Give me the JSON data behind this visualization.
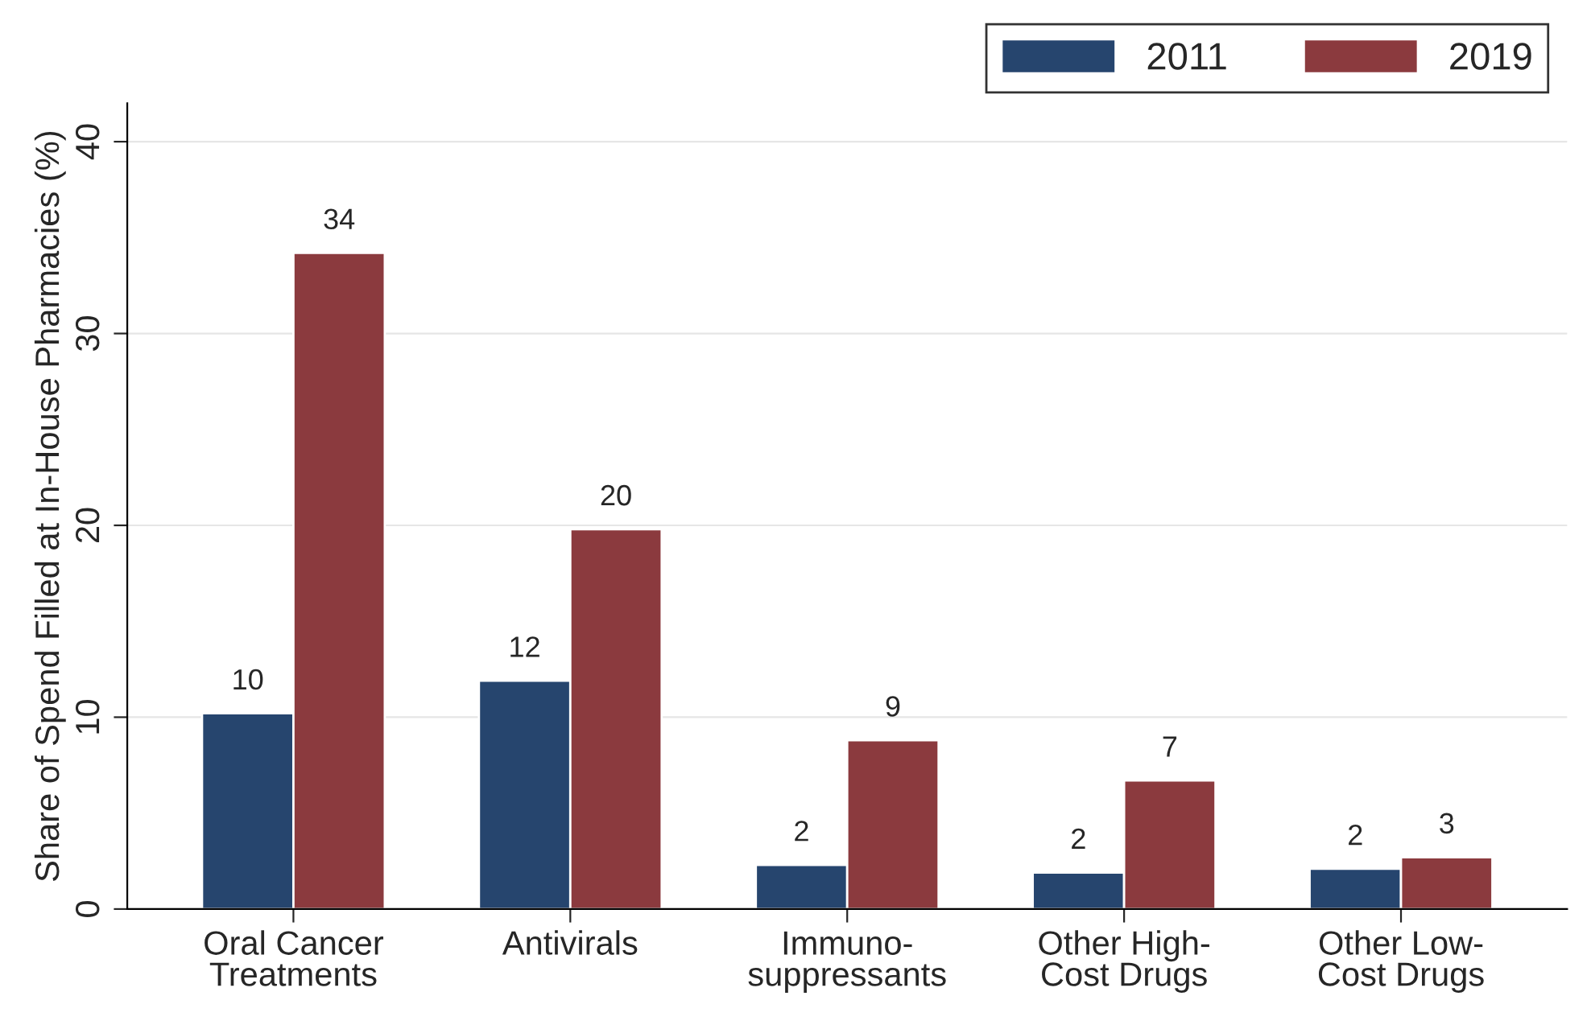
{
  "chart_data": {
    "type": "bar",
    "ylabel": "Share of Spend Filled at In-House Pharmacies (%)",
    "categories": [
      "Oral Cancer\nTreatments",
      "Antivirals",
      "Immuno-\nsuppressants",
      "Other High-\nCost Drugs",
      "Other Low-\nCost Drugs"
    ],
    "series": [
      {
        "name": "2011",
        "color": "#26456e",
        "values": [
          10.2,
          11.9,
          2.3,
          1.9,
          2.1
        ],
        "value_labels": [
          "10",
          "12",
          "2",
          "2",
          "2"
        ]
      },
      {
        "name": "2019",
        "color": "#8b3a3e",
        "values": [
          34.2,
          19.8,
          8.8,
          6.7,
          2.7
        ],
        "value_labels": [
          "34",
          "20",
          "9",
          "7",
          "3"
        ]
      }
    ],
    "ylim": [
      0,
      42
    ],
    "yticks": [
      0,
      10,
      20,
      30,
      40
    ],
    "grid": "y",
    "legend": "top right"
  }
}
